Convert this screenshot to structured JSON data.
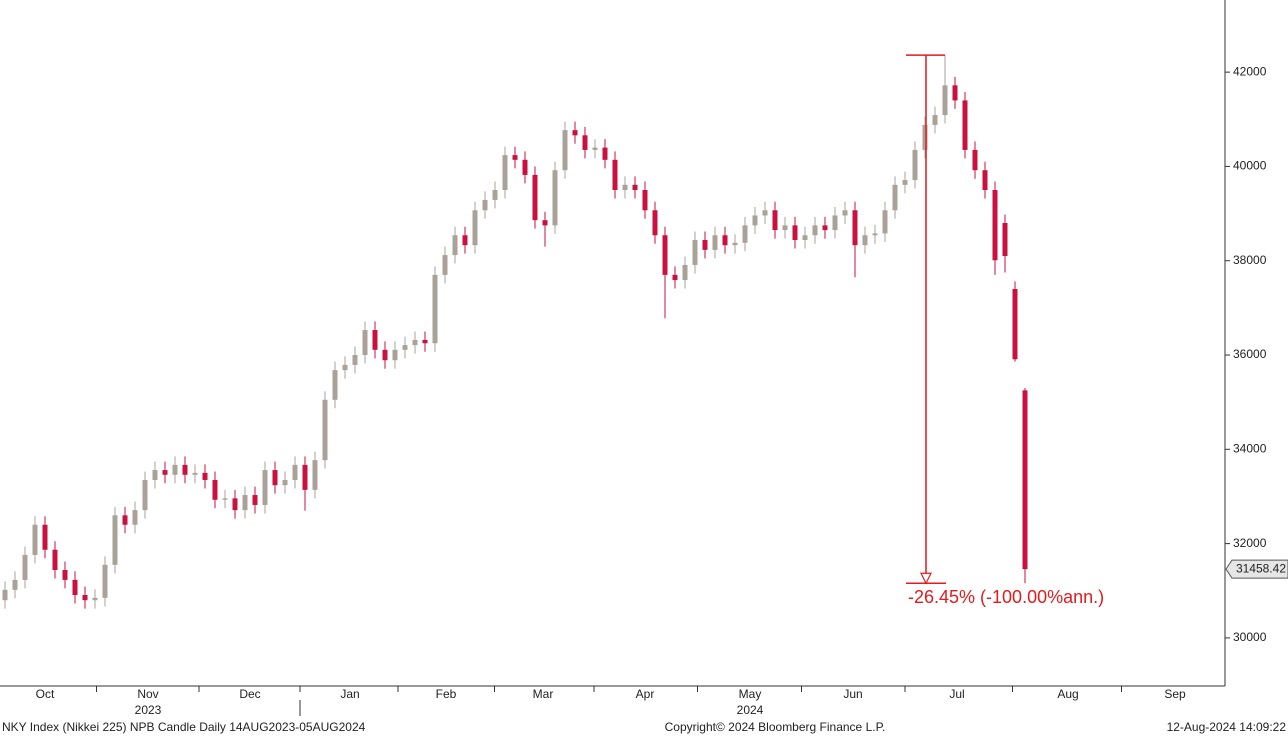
{
  "chart_data": {
    "type": "candlestick",
    "up_color": "#aaa198",
    "down_color": "#c8113f",
    "annotation_color": "#e41a1c",
    "open": [
      30800,
      31020,
      31230,
      31760,
      32400,
      31870,
      31440,
      31230,
      30910,
      30800,
      30850,
      31550,
      32600,
      32400,
      32710,
      33350,
      33560,
      33460,
      33670,
      33460,
      33500,
      33350,
      32930,
      32960,
      32710,
      33030,
      32820,
      33560,
      33240,
      33350,
      33670,
      33140,
      33770,
      35050,
      35680,
      35790,
      36000,
      36530,
      36110,
      35890,
      36110,
      36210,
      36320,
      36250,
      37700,
      38120,
      38540,
      38330,
      39070,
      39290,
      39500,
      40240,
      40140,
      39820,
      38860,
      38750,
      39920,
      40770,
      40660,
      40350,
      40400,
      40140,
      39500,
      39610,
      39500,
      39070,
      38540,
      37700,
      37590,
      37910,
      38440,
      38230,
      38540,
      38330,
      38380,
      38750,
      38960,
      39070,
      38650,
      38750,
      38440,
      38540,
      38750,
      38650,
      38960,
      39070,
      38330,
      38540,
      38580,
      39070,
      39610,
      39710,
      40350,
      40880,
      41090,
      41720,
      41400,
      40350,
      39920,
      39500,
      38800,
      37400,
      35250
    ],
    "high": [
      31200,
      31410,
      31940,
      32580,
      32580,
      32050,
      31620,
      31410,
      31090,
      31030,
      31730,
      32780,
      32780,
      32890,
      33530,
      33740,
      33740,
      33850,
      33850,
      33680,
      33680,
      33530,
      33140,
      33140,
      33210,
      33210,
      33740,
      33740,
      33530,
      33850,
      33850,
      33950,
      35230,
      35860,
      35970,
      36180,
      36710,
      36710,
      36290,
      36290,
      36390,
      36500,
      36500,
      37880,
      38300,
      38720,
      38720,
      39250,
      39470,
      39680,
      40420,
      40420,
      40320,
      40000,
      39040,
      40100,
      40950,
      40950,
      40840,
      40580,
      40580,
      40320,
      39790,
      39790,
      39680,
      39250,
      38720,
      37880,
      38090,
      38620,
      38620,
      38720,
      38720,
      38560,
      38930,
      39140,
      39250,
      39250,
      38930,
      38930,
      38720,
      38930,
      38930,
      39140,
      39250,
      39250,
      38720,
      38760,
      39250,
      39790,
      39890,
      40530,
      41060,
      41270,
      42360,
      41900,
      41580,
      40530,
      40100,
      39680,
      38980,
      37560,
      35300
    ],
    "low": [
      30620,
      30840,
      31050,
      31580,
      31690,
      31260,
      31050,
      30730,
      30620,
      30620,
      30670,
      31370,
      32220,
      32220,
      32530,
      33170,
      33280,
      33280,
      33280,
      33280,
      33170,
      32750,
      32750,
      32530,
      32530,
      32640,
      32640,
      33060,
      33060,
      33170,
      32700,
      32960,
      33590,
      34870,
      35500,
      35610,
      35820,
      35930,
      35710,
      35710,
      35930,
      36030,
      36070,
      36070,
      37520,
      37940,
      38150,
      38150,
      38890,
      39110,
      39320,
      39960,
      39640,
      38680,
      38300,
      38570,
      39740,
      40480,
      40170,
      40170,
      39960,
      39320,
      39320,
      39320,
      38890,
      38360,
      36780,
      37410,
      37410,
      37730,
      38050,
      38050,
      38150,
      38150,
      38200,
      38570,
      38780,
      38470,
      38470,
      38260,
      38260,
      38360,
      38470,
      38470,
      38780,
      37650,
      38150,
      38360,
      38400,
      38890,
      39430,
      39530,
      40170,
      40700,
      40910,
      41220,
      40170,
      39740,
      39320,
      37700,
      37750,
      35860,
      31160
    ],
    "close": [
      31020,
      31230,
      31760,
      32400,
      31870,
      31440,
      31230,
      30910,
      30800,
      30850,
      31550,
      32600,
      32400,
      32710,
      33350,
      33560,
      33460,
      33670,
      33460,
      33500,
      33350,
      32930,
      32960,
      32710,
      33030,
      32820,
      33560,
      33240,
      33350,
      33670,
      33140,
      33770,
      35050,
      35680,
      35790,
      36000,
      36530,
      36110,
      35890,
      36110,
      36210,
      36320,
      36250,
      37700,
      38120,
      38540,
      38330,
      39070,
      39290,
      39500,
      40240,
      40140,
      39820,
      38860,
      38750,
      39920,
      40770,
      40660,
      40350,
      40400,
      40140,
      39500,
      39610,
      39500,
      39070,
      38540,
      37700,
      37590,
      37910,
      38440,
      38230,
      38540,
      38330,
      38380,
      38750,
      38960,
      39070,
      38650,
      38750,
      38440,
      38540,
      38750,
      38650,
      38960,
      39070,
      38330,
      38540,
      38580,
      39070,
      39610,
      39710,
      40350,
      40880,
      41090,
      41720,
      41400,
      40350,
      39920,
      39500,
      38010,
      38100,
      35910,
      31458.42
    ],
    "xlim": [
      -0.5,
      122
    ],
    "xticks": [
      {
        "value": 4,
        "label": "Oct"
      },
      {
        "value": 14.3,
        "label": "Nov"
      },
      {
        "value": 24.5,
        "label": "Dec"
      },
      {
        "value": 34.5,
        "label": "Jan"
      },
      {
        "value": 44.1,
        "label": "Feb"
      },
      {
        "value": 53.8,
        "label": "Mar"
      },
      {
        "value": 64,
        "label": "Apr"
      },
      {
        "value": 74.5,
        "label": "May"
      },
      {
        "value": 84.8,
        "label": "Jun"
      },
      {
        "value": 95.2,
        "label": "Jul"
      },
      {
        "value": 106.3,
        "label": "Aug"
      },
      {
        "value": 117,
        "label": "Sep"
      }
    ],
    "year_labels": [
      {
        "value": 14.3,
        "label": "2023"
      },
      {
        "value": 74.5,
        "label": "2024"
      }
    ],
    "ylim": [
      28980,
      43530
    ],
    "yticks": [
      30000,
      32000,
      34000,
      36000,
      38000,
      40000,
      42000
    ],
    "annotation": {
      "text": "-26.45% (-100.00%ann.)",
      "from": 94,
      "to": 102
    },
    "footer_left": "NKY Index (Nikkei 225) NPB Candle  Daily 14AUG2023-05AUG2024",
    "footer_center": "Copyright© 2024 Bloomberg Finance L.P.",
    "footer_right": "12-Aug-2024 14:09:22"
  }
}
